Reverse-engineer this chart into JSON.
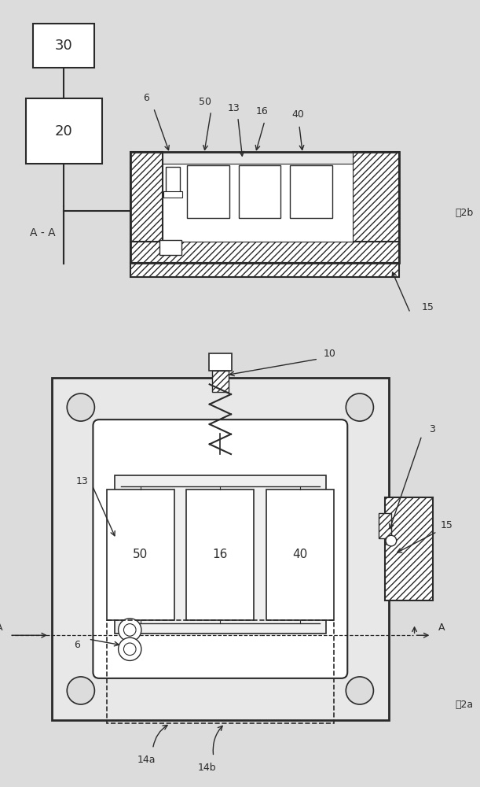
{
  "bg_color": "#dcdcdc",
  "line_color": "#2a2a2a",
  "white": "#ffffff",
  "fig_2a": "图2a",
  "fig_2b": "图2b",
  "section_label": "A-A"
}
